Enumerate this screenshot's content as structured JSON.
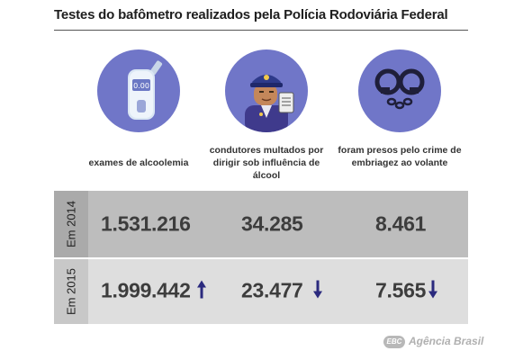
{
  "title": "Testes do bafômetro realizados pela Polícia Rodoviária Federal",
  "colors": {
    "icon_circle": "#7076c8",
    "row_2014": "#bdbdbd",
    "row_2015": "#dedede",
    "arrow": "#2b2a7e"
  },
  "categories": [
    {
      "icon": "breathalyzer-icon",
      "label": "exames de alcoolemia",
      "display_text": "0.00"
    },
    {
      "icon": "officer-icon",
      "label": "condutores multados por dirigir sob influência de álcool"
    },
    {
      "icon": "handcuffs-icon",
      "label": "foram presos pelo crime de embriagez ao volante"
    }
  ],
  "rows": [
    {
      "year": "Em 2014",
      "values": [
        "1.531.216",
        "34.285",
        "8.461"
      ],
      "trends": [
        "",
        "",
        ""
      ]
    },
    {
      "year": "Em 2015",
      "values": [
        "1.999.442",
        "23.477",
        "7.565"
      ],
      "trends": [
        "up",
        "down",
        "down"
      ]
    }
  ],
  "brand": {
    "badge": "EBC",
    "name": "Agência Brasil"
  }
}
